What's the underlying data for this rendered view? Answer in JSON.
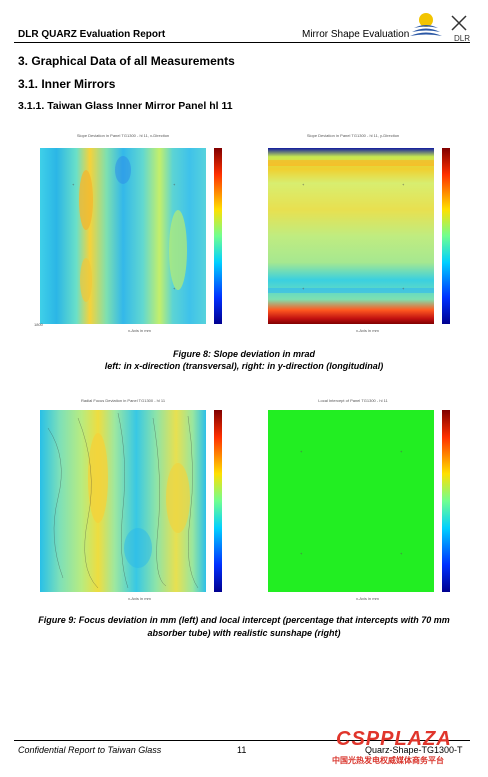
{
  "header": {
    "left": "DLR QUARZ Evaluation Report",
    "right": "Mirror Shape Evaluation",
    "logo_text": "DLR"
  },
  "headings": {
    "h1": "3.   Graphical Data of all Measurements",
    "h2": "3.1.     Inner Mirrors",
    "h3": "3.1.1.   Taiwan Glass Inner Mirror Panel hl 11"
  },
  "figure8": {
    "caption_line1": "Figure 8: Slope deviation in mrad",
    "caption_line2": "left: in x-direction (transversal), right: in y-direction (longitudinal)"
  },
  "figure9": {
    "caption_line1": "Figure 9: Focus deviation in mm (left) and local intercept (percentage that intercepts with 70 mm",
    "caption_line2": "absorber tube) with realistic sunshape (right)"
  },
  "footer": {
    "left": "Confidential Report to Taiwan Glass",
    "page": "11",
    "right": "Quarz-Shape-TG1300-T"
  },
  "watermark": {
    "brand": "CSPPLAZA",
    "sub": "中国光热发电权威媒体商务平台"
  },
  "colors": {
    "accent": "#e0352b",
    "green_field": "#22ee22"
  }
}
